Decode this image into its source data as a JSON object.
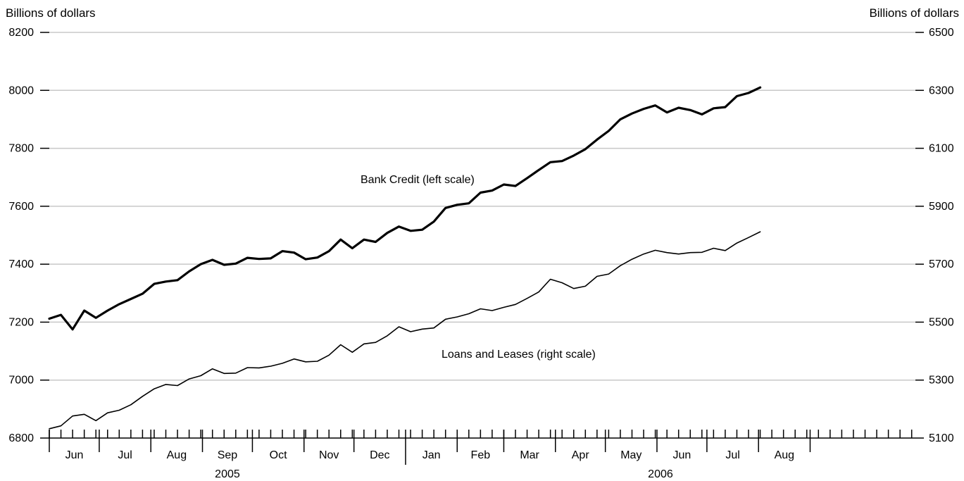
{
  "chart_data": {
    "type": "line",
    "left_axis": {
      "title": "Billions of dollars",
      "ylim": [
        6800,
        8200
      ],
      "ticks": [
        6800,
        7000,
        7200,
        7400,
        7600,
        7800,
        8000,
        8200
      ]
    },
    "right_axis": {
      "title": "Billions of dollars",
      "ylim": [
        5100,
        6500
      ],
      "ticks": [
        5100,
        5300,
        5500,
        5700,
        5900,
        6100,
        6300,
        6500
      ]
    },
    "x_axis": {
      "start_week": "2005-06-01",
      "months": [
        "Jun",
        "Jul",
        "Aug",
        "Sep",
        "Oct",
        "Nov",
        "Dec",
        "Jan",
        "Feb",
        "Mar",
        "Apr",
        "May",
        "Jun",
        "Jul",
        "Aug"
      ],
      "years": [
        "2005",
        "2006"
      ],
      "grid": true
    },
    "series": [
      {
        "name": "Bank Credit (left scale)",
        "axis": "left",
        "color": "#000000",
        "values": [
          7212,
          7225,
          7175,
          7240,
          7215,
          7240,
          7262,
          7280,
          7298,
          7332,
          7340,
          7345,
          7375,
          7400,
          7415,
          7398,
          7402,
          7422,
          7418,
          7420,
          7445,
          7440,
          7417,
          7423,
          7445,
          7485,
          7455,
          7485,
          7477,
          7508,
          7530,
          7515,
          7519,
          7547,
          7594,
          7605,
          7610,
          7647,
          7654,
          7675,
          7670,
          7697,
          7725,
          7752,
          7756,
          7775,
          7797,
          7830,
          7860,
          7900,
          7920,
          7936,
          7948,
          7924,
          7940,
          7932,
          7917,
          7938,
          7942,
          7980,
          7991,
          8010
        ]
      },
      {
        "name": "Loans and Leases (right scale)",
        "axis": "right",
        "color": "#000000",
        "values": [
          5132,
          5142,
          5176,
          5182,
          5160,
          5187,
          5196,
          5215,
          5244,
          5270,
          5285,
          5281,
          5304,
          5315,
          5339,
          5323,
          5324,
          5343,
          5342,
          5348,
          5358,
          5373,
          5363,
          5365,
          5386,
          5422,
          5396,
          5425,
          5430,
          5453,
          5484,
          5467,
          5476,
          5480,
          5510,
          5518,
          5529,
          5546,
          5540,
          5551,
          5561,
          5582,
          5604,
          5648,
          5636,
          5616,
          5624,
          5658,
          5666,
          5695,
          5717,
          5735,
          5748,
          5740,
          5735,
          5740,
          5741,
          5755,
          5747,
          5773,
          5792,
          5812
        ]
      }
    ],
    "annotations": [
      {
        "text": "Bank Credit (left scale)",
        "value": 7700,
        "axis": "left"
      },
      {
        "text": "Loans and Leases (right scale)",
        "value": 5385,
        "axis": "right"
      }
    ]
  }
}
